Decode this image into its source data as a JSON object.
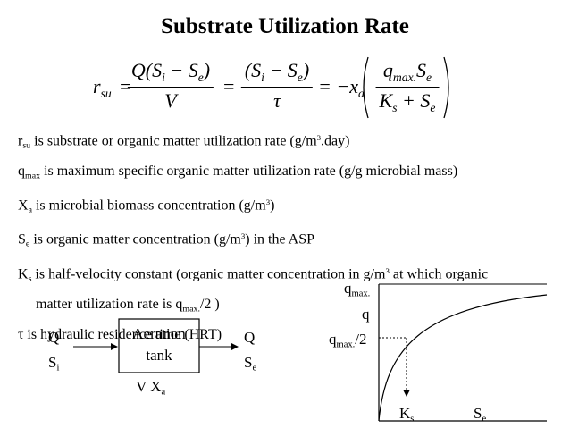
{
  "title": "Substrate Utilization Rate",
  "equation": {
    "lhs": [
      {
        "text": "r"
      },
      {
        "sub": "su"
      }
    ],
    "sign1": "=",
    "fraction1": {
      "numerator": [
        {
          "text": "Q(S"
        },
        {
          "sub": "i"
        },
        {
          "text": " − S"
        },
        {
          "sub": "e"
        },
        {
          "text": ")"
        }
      ],
      "denominator": [
        {
          "text": "V"
        }
      ]
    },
    "sign2": "=",
    "fraction2": {
      "numerator": [
        {
          "text": "(S"
        },
        {
          "sub": "i"
        },
        {
          "text": " − S"
        },
        {
          "sub": "e"
        },
        {
          "text": ")"
        }
      ],
      "denominator": [
        {
          "text": "τ"
        }
      ]
    },
    "factor": [
      {
        "text": "= −x"
      },
      {
        "sub": "a"
      }
    ],
    "fraction3": {
      "numerator": [
        {
          "text": "q"
        },
        {
          "sub": "max."
        },
        {
          "text": "S"
        },
        {
          "sub": "e"
        }
      ],
      "denominator": [
        {
          "text": "K"
        },
        {
          "sub": "s"
        },
        {
          "text": " + S"
        },
        {
          "sub": "e"
        }
      ]
    }
  },
  "definitions": [
    {
      "lines": [
        [
          {
            "text": "r"
          },
          {
            "sub": "su"
          },
          {
            "text": " is substrate or organic matter utilization rate (g/m"
          },
          {
            "sup": "3"
          },
          {
            "text": ".day)"
          }
        ]
      ]
    },
    {
      "lines": [
        [
          {
            "text": "q"
          },
          {
            "sub": "max"
          },
          {
            "text": " is maximum specific organic matter utilization rate (g/g microbial mass)"
          }
        ]
      ]
    },
    {
      "lines": [
        [
          {
            "text": "X"
          },
          {
            "sub": "a"
          },
          {
            "text": " is microbial biomass concentration (g/m"
          },
          {
            "sup": "3"
          },
          {
            "text": ")"
          }
        ]
      ]
    },
    {
      "lines": [
        [
          {
            "text": "S"
          },
          {
            "sub": "e"
          },
          {
            "text": " is organic matter concentration (g/m"
          },
          {
            "sup": "3"
          },
          {
            "text": ") in the ASP"
          }
        ]
      ]
    },
    {
      "lines": [
        [
          {
            "text": "K"
          },
          {
            "sub": "s"
          },
          {
            "text": " is half-velocity constant (organic matter concentration in g/m"
          },
          {
            "sup": "3"
          },
          {
            "text": " at which organic"
          }
        ],
        [
          {
            "text": "matter utilization rate is q"
          },
          {
            "sub": "max."
          },
          {
            "text": "/2 )"
          }
        ]
      ]
    },
    {
      "lines": [
        [
          {
            "text": "τ  is hydraulic residence time (HRT)"
          }
        ]
      ]
    }
  ],
  "diagram": {
    "inlet": [
      [
        {
          "text": "Q"
        }
      ],
      [
        {
          "text": "S"
        },
        {
          "sub": "i"
        }
      ]
    ],
    "tank": [
      "Aeration",
      "tank"
    ],
    "outlet": [
      [
        {
          "text": "Q"
        }
      ],
      [
        {
          "text": "S"
        },
        {
          "sub": "e"
        }
      ]
    ],
    "tank_properties": [
      {
        "text": "V   X"
      },
      {
        "sub": "a"
      }
    ]
  },
  "graph": {
    "y_labels": [
      [
        {
          "text": "q"
        },
        {
          "sub": "max."
        }
      ],
      [
        {
          "text": "q"
        }
      ],
      [
        {
          "text": "q"
        },
        {
          "sub": "max."
        },
        {
          "text": "/2"
        }
      ]
    ],
    "x_labels": [
      [
        {
          "text": "K"
        },
        {
          "sub": "s"
        }
      ],
      [
        {
          "text": "S"
        },
        {
          "sub": "e"
        }
      ]
    ]
  }
}
